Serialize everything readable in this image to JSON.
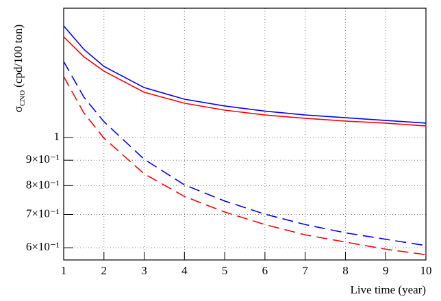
{
  "chart_data": {
    "type": "line",
    "x_label": "Live time (year)",
    "y_label": {
      "symbol": "σ",
      "subscript": "CNO",
      "unit": "(cpd/100 ton)"
    },
    "x": [
      1,
      1.5,
      2,
      3,
      4,
      5,
      6,
      7,
      8,
      9,
      10
    ],
    "series": [
      {
        "color": "#0000ff",
        "dashed": false,
        "values": [
          1.677,
          1.505,
          1.39,
          1.26,
          1.194,
          1.157,
          1.13,
          1.11,
          1.096,
          1.082,
          1.069
        ]
      },
      {
        "color": "#ff0000",
        "dashed": false,
        "values": [
          1.594,
          1.454,
          1.36,
          1.233,
          1.172,
          1.135,
          1.11,
          1.093,
          1.079,
          1.069,
          1.055
        ]
      },
      {
        "color": "#0000ff",
        "dashed": true,
        "values": [
          1.422,
          1.206,
          1.076,
          0.904,
          0.803,
          0.745,
          0.701,
          0.668,
          0.643,
          0.624,
          0.606
        ]
      },
      {
        "color": "#ff0000",
        "dashed": true,
        "values": [
          1.326,
          1.121,
          0.997,
          0.845,
          0.761,
          0.708,
          0.668,
          0.637,
          0.616,
          0.596,
          0.581
        ]
      }
    ],
    "xlim": [
      1,
      10
    ],
    "xticks": [
      1,
      2,
      3,
      4,
      5,
      6,
      7,
      8,
      9,
      10
    ],
    "ylim": [
      0.567,
      1.82
    ],
    "ylog": true,
    "yticks": [
      1,
      {
        "value": 0.9,
        "label": "9×10⁻¹"
      },
      {
        "value": 0.8,
        "label": "8×10⁻¹"
      },
      {
        "value": 0.7,
        "label": "7×10⁻¹"
      },
      {
        "value": 0.6,
        "label": "6×10⁻¹"
      }
    ],
    "grid": true
  }
}
